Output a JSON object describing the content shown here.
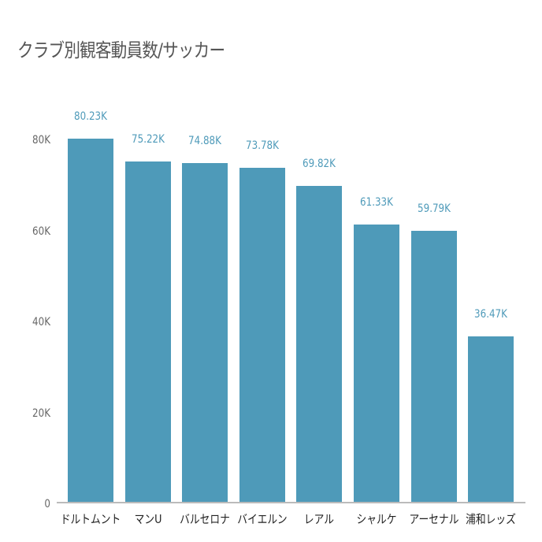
{
  "chart_data": {
    "type": "bar",
    "title": "クラブ別観客動員数/サッカー",
    "xlabel": "",
    "ylabel": "",
    "categories": [
      "ドルトムント",
      "マンU",
      "バルセロナ",
      "バイエルン",
      "レアル",
      "シャルケ",
      "アーセナル",
      "浦和レッズ"
    ],
    "values": [
      80230,
      75220,
      74880,
      73780,
      69820,
      61330,
      59790,
      36470
    ],
    "value_labels": [
      "80.23K",
      "75.22K",
      "74.88K",
      "73.78K",
      "69.82K",
      "61.33K",
      "59.79K",
      "36.47K"
    ],
    "ylim": [
      0,
      80000
    ],
    "yticks": [
      0,
      20000,
      40000,
      60000,
      80000
    ],
    "ytick_labels": [
      "0",
      "20K",
      "40K",
      "60K",
      "80K"
    ],
    "grid": false,
    "legend": null,
    "bar_color": "#4e9ab9"
  },
  "title": "クラブ別観客動員数/サッカー",
  "y_axis": {
    "ticks": [
      "0",
      "20K",
      "40K",
      "60K",
      "80K"
    ]
  },
  "colors": {
    "bar": "#4e9ab9",
    "value_label": "#4e9ab9",
    "axis": "#bbbbbb",
    "title": "#555555"
  }
}
